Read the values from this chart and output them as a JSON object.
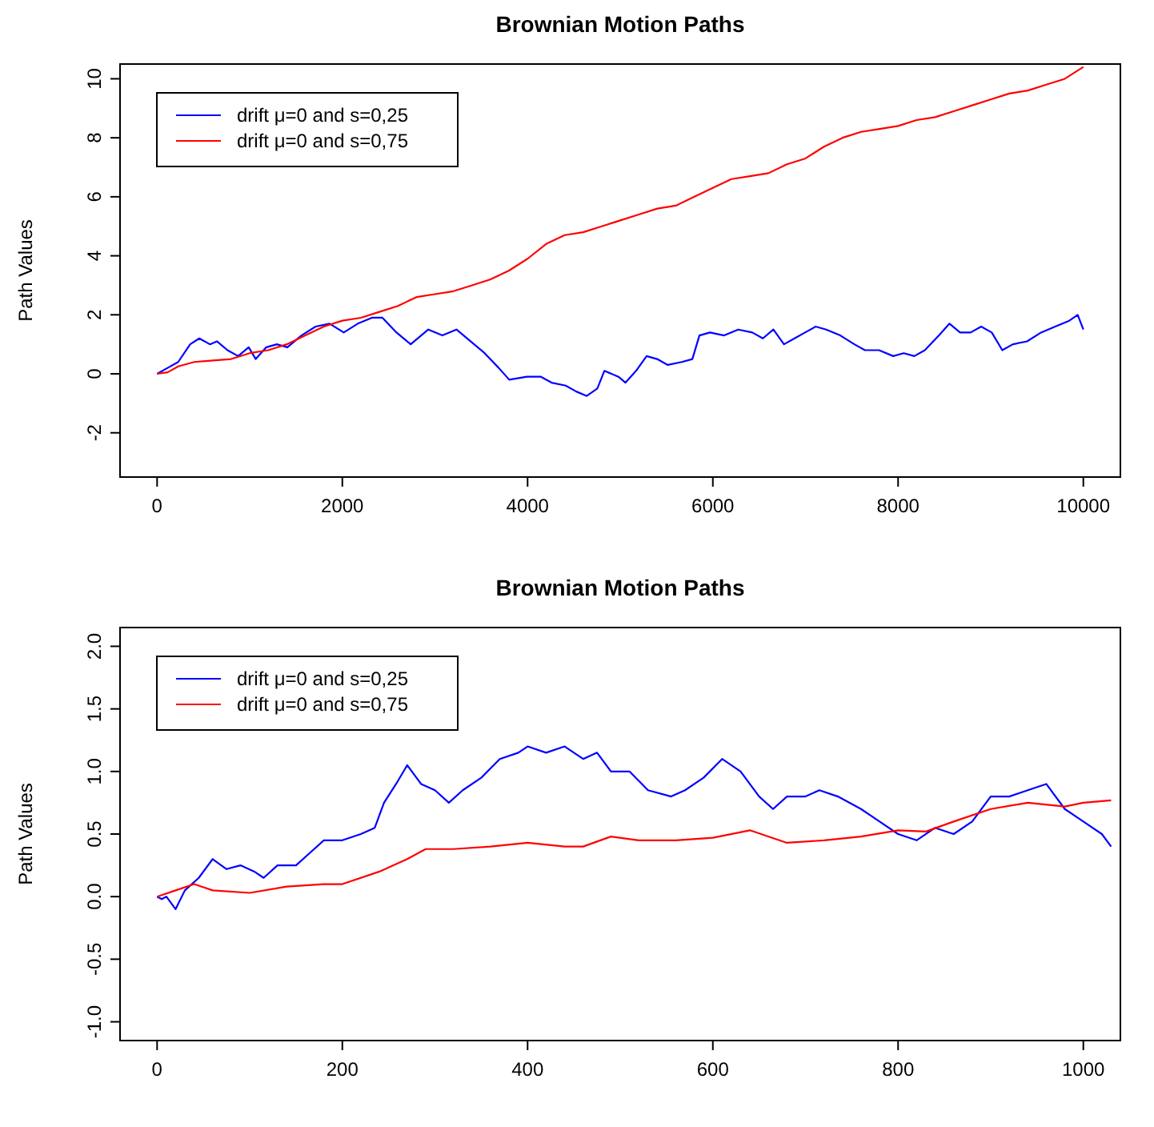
{
  "chart_data": [
    {
      "type": "line",
      "title": "Brownian Motion Paths",
      "ylabel": "Path Values",
      "xlim": [
        -400,
        10400
      ],
      "ylim": [
        -3.5,
        10.5
      ],
      "xticks": [
        0,
        2000,
        4000,
        6000,
        8000,
        10000
      ],
      "yticks": [
        -2,
        0,
        2,
        4,
        6,
        8,
        10
      ],
      "grid": false,
      "legend": "top left",
      "marker": "none",
      "line_style": "solid",
      "series": [
        {
          "name": "drift μ=0 and s=0,25",
          "color": "#0000ff",
          "x": [
            0,
            114,
            228,
            357,
            456,
            570,
            646,
            760,
            875,
            989,
            1065,
            1179,
            1293,
            1407,
            1559,
            1711,
            1863,
            2015,
            2167,
            2319,
            2433,
            2585,
            2738,
            2928,
            3080,
            3232,
            3384,
            3536,
            3688,
            3802,
            3992,
            4144,
            4259,
            4411,
            4525,
            4639,
            4753,
            4829,
            4981,
            5057,
            5171,
            5285,
            5399,
            5513,
            5665,
            5779,
            5855,
            5969,
            6122,
            6274,
            6426,
            6540,
            6654,
            6768,
            6882,
            6996,
            7110,
            7224,
            7376,
            7528,
            7642,
            7794,
            7947,
            8061,
            8175,
            8289,
            8441,
            8555,
            8669,
            8783,
            8897,
            9011,
            9125,
            9239,
            9392,
            9544,
            9696,
            9848,
            9939,
            10000
          ],
          "values": [
            0,
            0.2,
            0.4,
            1.0,
            1.2,
            1.0,
            1.1,
            0.8,
            0.6,
            0.9,
            0.5,
            0.9,
            1.0,
            0.9,
            1.3,
            1.6,
            1.7,
            1.4,
            1.7,
            1.9,
            1.9,
            1.4,
            1.0,
            1.5,
            1.3,
            1.5,
            1.1,
            0.7,
            0.2,
            -0.2,
            -0.1,
            -0.1,
            -0.3,
            -0.4,
            -0.6,
            -0.75,
            -0.5,
            0.1,
            -0.1,
            -0.3,
            0.1,
            0.6,
            0.5,
            0.3,
            0.4,
            0.5,
            1.3,
            1.4,
            1.3,
            1.5,
            1.4,
            1.2,
            1.5,
            1.0,
            1.2,
            1.4,
            1.6,
            1.5,
            1.3,
            1.0,
            0.8,
            0.8,
            0.6,
            0.7,
            0.6,
            0.8,
            1.3,
            1.7,
            1.4,
            1.4,
            1.6,
            1.4,
            0.8,
            1.0,
            1.1,
            1.4,
            1.6,
            1.8,
            2.0,
            1.5
          ]
        },
        {
          "name": "drift μ=0 and s=0,75",
          "color": "#ff0000",
          "x": [
            0,
            114,
            228,
            400,
            600,
            800,
            1000,
            1200,
            1400,
            1600,
            1800,
            2000,
            2200,
            2400,
            2600,
            2800,
            3000,
            3200,
            3400,
            3600,
            3800,
            4000,
            4200,
            4400,
            4600,
            4800,
            5000,
            5200,
            5400,
            5600,
            5800,
            6000,
            6200,
            6400,
            6600,
            6800,
            7000,
            7200,
            7400,
            7600,
            7800,
            8000,
            8200,
            8400,
            8600,
            8800,
            9000,
            9200,
            9400,
            9600,
            9800,
            10000
          ],
          "values": [
            0,
            0.05,
            0.25,
            0.4,
            0.45,
            0.5,
            0.7,
            0.8,
            1.0,
            1.3,
            1.6,
            1.8,
            1.9,
            2.1,
            2.3,
            2.6,
            2.7,
            2.8,
            3.0,
            3.2,
            3.5,
            3.9,
            4.4,
            4.7,
            4.8,
            5.0,
            5.2,
            5.4,
            5.6,
            5.7,
            6.0,
            6.3,
            6.6,
            6.7,
            6.8,
            7.1,
            7.3,
            7.7,
            8.0,
            8.2,
            8.3,
            8.4,
            8.6,
            8.7,
            8.9,
            9.1,
            9.3,
            9.5,
            9.6,
            9.8,
            10.0,
            10.4
          ]
        }
      ]
    },
    {
      "type": "line",
      "title": "Brownian Motion Paths",
      "ylabel": "Path Values",
      "xlim": [
        -40,
        1040
      ],
      "ylim": [
        -1.15,
        2.15
      ],
      "xticks": [
        0,
        200,
        400,
        600,
        800,
        1000
      ],
      "yticks": [
        {
          "value": -1,
          "label": "-1.0"
        },
        -0.5,
        {
          "value": 0,
          "label": "0.0"
        },
        0.5,
        {
          "value": 1,
          "label": "1.0"
        },
        1.5,
        {
          "value": 2,
          "label": "2.0"
        }
      ],
      "grid": false,
      "legend": "top left",
      "marker": "none",
      "line_style": "solid",
      "series": [
        {
          "name": "drift μ=0 and s=0,25",
          "color": "#0000ff",
          "x": [
            0,
            5,
            10,
            20,
            30,
            45,
            60,
            75,
            90,
            105,
            115,
            130,
            150,
            165,
            180,
            200,
            220,
            235,
            245,
            258,
            270,
            285,
            300,
            315,
            330,
            350,
            370,
            390,
            400,
            420,
            440,
            460,
            475,
            490,
            510,
            530,
            555,
            570,
            590,
            610,
            630,
            650,
            665,
            680,
            700,
            715,
            735,
            760,
            780,
            800,
            820,
            840,
            860,
            880,
            900,
            920,
            940,
            960,
            980,
            1000,
            1020,
            1030
          ],
          "values": [
            0,
            -0.02,
            0,
            -0.1,
            0.05,
            0.15,
            0.3,
            0.22,
            0.25,
            0.2,
            0.15,
            0.25,
            0.25,
            0.35,
            0.45,
            0.45,
            0.5,
            0.55,
            0.75,
            0.9,
            1.05,
            0.9,
            0.85,
            0.75,
            0.85,
            0.95,
            1.1,
            1.15,
            1.2,
            1.15,
            1.2,
            1.1,
            1.15,
            1.0,
            1.0,
            0.85,
            0.8,
            0.85,
            0.95,
            1.1,
            1.0,
            0.8,
            0.7,
            0.8,
            0.8,
            0.85,
            0.8,
            0.7,
            0.6,
            0.5,
            0.45,
            0.55,
            0.5,
            0.6,
            0.8,
            0.8,
            0.85,
            0.9,
            0.7,
            0.6,
            0.5,
            0.4
          ]
        },
        {
          "name": "drift μ=0 and s=0,75",
          "color": "#ff0000",
          "x": [
            0,
            20,
            40,
            60,
            100,
            140,
            180,
            200,
            240,
            270,
            290,
            320,
            360,
            400,
            440,
            460,
            490,
            520,
            560,
            600,
            640,
            680,
            720,
            760,
            800,
            830,
            860,
            900,
            940,
            980,
            1000,
            1030
          ],
          "values": [
            0,
            0.05,
            0.1,
            0.05,
            0.03,
            0.08,
            0.1,
            0.1,
            0.2,
            0.3,
            0.38,
            0.38,
            0.4,
            0.43,
            0.4,
            0.4,
            0.48,
            0.45,
            0.45,
            0.47,
            0.53,
            0.43,
            0.45,
            0.48,
            0.53,
            0.52,
            0.6,
            0.7,
            0.75,
            0.72,
            0.75,
            0.77
          ]
        }
      ]
    }
  ]
}
